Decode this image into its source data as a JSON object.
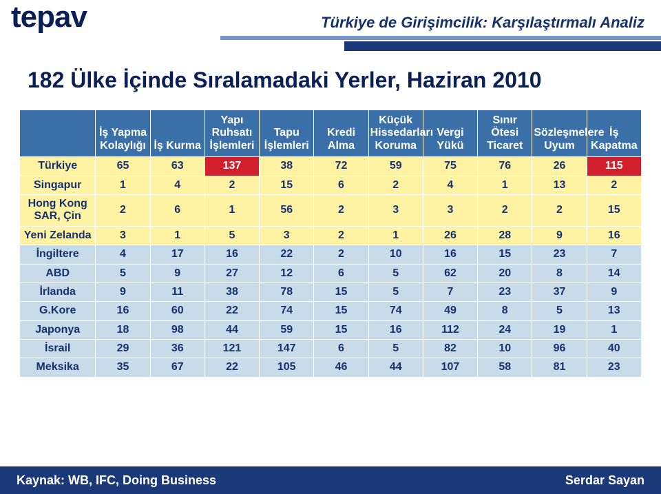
{
  "colors": {
    "logo": "#0a1f55",
    "topTitle": "#16326e",
    "stripe1": "#7895c9",
    "stripe2": "#1b3878",
    "mainTitle": "#0a1f55",
    "tableBorder": "#ffffff",
    "headerBg": "#3a6fa8",
    "headerText": "#ffffff",
    "rowBgNormal": "#c7dbe9",
    "rowTextNormal": "#16326e",
    "rowBgHighlight": "#fff3a3",
    "rowTextHighlight": "#16326e",
    "cellHighlightBg": "#d1202b",
    "cellHighlightText": "#ffffff",
    "footerBg": "#1b3878",
    "footerText": "#ffffff"
  },
  "logo": "tepav",
  "topTitle": "Türkiye de Girişimcilik: Karşılaştırmalı Analiz",
  "mainTitle": "182 Ülke İçinde Sıralamadaki Yerler, Haziran 2010",
  "sourceLabel": "Kaynak: WB, IFC, Doing Business",
  "author": "Serdar Sayan",
  "table": {
    "columns": [
      "İş Yapma Kolaylığı",
      "İş Kurma",
      "Yapı Ruhsatı İşlemleri",
      "Tapu İşlemleri",
      "Kredi Alma",
      "Küçük Hissedarları Koruma",
      "Vergi Yükü",
      "Sınır Ötesi Ticaret",
      "Sözleşmelere Uyum",
      "İş Kapatma"
    ],
    "rows": [
      {
        "label": "Türkiye",
        "highlightRow": true,
        "values": [
          65,
          63,
          137,
          38,
          72,
          59,
          75,
          76,
          26,
          115
        ],
        "highlightCells": [
          2,
          9
        ]
      },
      {
        "label": "Singapur",
        "highlightRow": true,
        "values": [
          1,
          4,
          2,
          15,
          6,
          2,
          4,
          1,
          13,
          2
        ]
      },
      {
        "label": "Hong Kong SAR, Çin",
        "highlightRow": true,
        "values": [
          2,
          6,
          1,
          56,
          2,
          3,
          3,
          2,
          2,
          15
        ]
      },
      {
        "label": "Yeni Zelanda",
        "highlightRow": true,
        "values": [
          3,
          1,
          5,
          3,
          2,
          1,
          26,
          28,
          9,
          16
        ]
      },
      {
        "label": "İngiltere",
        "highlightRow": false,
        "values": [
          4,
          17,
          16,
          22,
          2,
          10,
          16,
          15,
          23,
          7
        ]
      },
      {
        "label": "ABD",
        "highlightRow": false,
        "values": [
          5,
          9,
          27,
          12,
          6,
          5,
          62,
          20,
          8,
          14
        ]
      },
      {
        "label": "İrlanda",
        "highlightRow": false,
        "values": [
          9,
          11,
          38,
          78,
          15,
          5,
          7,
          23,
          37,
          9
        ]
      },
      {
        "label": "G.Kore",
        "highlightRow": false,
        "values": [
          16,
          60,
          22,
          74,
          15,
          74,
          49,
          8,
          5,
          13
        ]
      },
      {
        "label": "Japonya",
        "highlightRow": false,
        "values": [
          18,
          98,
          44,
          59,
          15,
          16,
          112,
          24,
          19,
          1
        ]
      },
      {
        "label": "İsrail",
        "highlightRow": false,
        "values": [
          29,
          36,
          121,
          147,
          6,
          5,
          82,
          10,
          96,
          40
        ]
      },
      {
        "label": "Meksika",
        "highlightRow": false,
        "values": [
          35,
          67,
          22,
          105,
          46,
          44,
          107,
          58,
          81,
          23
        ]
      }
    ]
  }
}
